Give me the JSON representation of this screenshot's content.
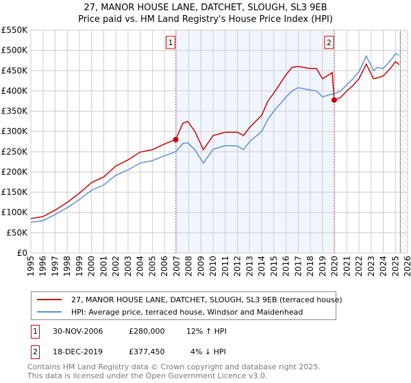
{
  "chart_data": {
    "type": "line",
    "title": "27, MANOR HOUSE LANE, DATCHET, SLOUGH, SL3 9EB",
    "subtitle": "Price paid vs. HM Land Registry's House Price Index (HPI)",
    "xlim": [
      1995,
      2026
    ],
    "ylim": [
      0,
      550000
    ],
    "x_ticks": [
      "1995",
      "1996",
      "1997",
      "1998",
      "1999",
      "2000",
      "2001",
      "2002",
      "2003",
      "2004",
      "2005",
      "2006",
      "2007",
      "2008",
      "2009",
      "2010",
      "2011",
      "2012",
      "2013",
      "2014",
      "2015",
      "2016",
      "2017",
      "2018",
      "2019",
      "2020",
      "2021",
      "2022",
      "2023",
      "2024",
      "2025",
      "2026"
    ],
    "y_ticks": [
      {
        "v": 0,
        "l": "£0"
      },
      {
        "v": 50000,
        "l": "£50K"
      },
      {
        "v": 100000,
        "l": "£100K"
      },
      {
        "v": 150000,
        "l": "£150K"
      },
      {
        "v": 200000,
        "l": "£200K"
      },
      {
        "v": 250000,
        "l": "£250K"
      },
      {
        "v": 300000,
        "l": "£300K"
      },
      {
        "v": 350000,
        "l": "£350K"
      },
      {
        "v": 400000,
        "l": "£400K"
      },
      {
        "v": 450000,
        "l": "£450K"
      },
      {
        "v": 500000,
        "l": "£500K"
      },
      {
        "v": 550000,
        "l": "£550K"
      }
    ],
    "grid": true,
    "series": [
      {
        "name": "27, MANOR HOUSE LANE, DATCHET, SLOUGH, SL3 9EB (terraced house)",
        "color": "#cc0000",
        "x": [
          1995,
          1996,
          1997,
          1998,
          1999,
          2000,
          2001,
          2002,
          2003,
          2004,
          2005,
          2006,
          2006.92,
          2007.5,
          2007.9,
          2008.5,
          2009.2,
          2010,
          2011,
          2012,
          2012.5,
          2013,
          2014,
          2014.5,
          2015,
          2016,
          2016.5,
          2017,
          2018,
          2018.5,
          2019,
          2019.8,
          2019.96,
          2020.5,
          2021,
          2021.5,
          2022,
          2022.6,
          2023.2,
          2023.5,
          2024,
          2024.6,
          2025,
          2025.3
        ],
        "y": [
          85000,
          90000,
          106000,
          125000,
          148000,
          174000,
          188000,
          215000,
          230000,
          249000,
          255000,
          269000,
          280000,
          320000,
          325000,
          300000,
          255000,
          290000,
          298000,
          298000,
          290000,
          310000,
          340000,
          375000,
          395000,
          440000,
          458000,
          460000,
          455000,
          455000,
          430000,
          445000,
          377450,
          384000,
          400000,
          413000,
          430000,
          466000,
          430000,
          432000,
          437000,
          456000,
          472000,
          465000
        ]
      },
      {
        "name": "HPI: Average price, terraced house, Windsor and Maidenhead",
        "color": "#5b8fd0",
        "x": [
          1995,
          1996,
          1997,
          1998,
          1999,
          2000,
          2001,
          2002,
          2003,
          2004,
          2005,
          2006,
          2006.92,
          2007.5,
          2007.9,
          2008.5,
          2009.2,
          2010,
          2011,
          2012,
          2012.5,
          2013,
          2014,
          2014.5,
          2015,
          2016,
          2016.5,
          2017,
          2018,
          2018.5,
          2019,
          2019.5,
          2019.96,
          2020.5,
          2021,
          2021.5,
          2022,
          2022.6,
          2023.2,
          2023.5,
          2024,
          2024.6,
          2025,
          2025.3
        ],
        "y": [
          76000,
          80000,
          95000,
          112000,
          132000,
          155000,
          168000,
          192000,
          205000,
          222000,
          228000,
          240000,
          250000,
          270000,
          272000,
          255000,
          222000,
          256000,
          265000,
          264000,
          255000,
          275000,
          300000,
          330000,
          350000,
          385000,
          400000,
          408000,
          402000,
          400000,
          385000,
          390000,
          393000,
          400000,
          415000,
          430000,
          447000,
          486000,
          450000,
          458000,
          455000,
          475000,
          492000,
          488000
        ]
      }
    ],
    "sales": [
      {
        "id": "1",
        "x": 2006.92,
        "y": 280000
      },
      {
        "id": "2",
        "x": 2019.96,
        "y": 377450
      }
    ],
    "future_hatch_from": 2025.4,
    "legend_position": "bottom"
  },
  "legend": {
    "price_label": "27, MANOR HOUSE LANE, DATCHET, SLOUGH, SL3 9EB (terraced house)",
    "hpi_label": "HPI: Average price, terraced house, Windsor and Maidenhead"
  },
  "transactions": [
    {
      "id": "1",
      "date": "30-NOV-2006",
      "price": "£280,000",
      "hpi": "12% ↑ HPI"
    },
    {
      "id": "2",
      "date": "18-DEC-2019",
      "price": "£377,450",
      "hpi": "4% ↓ HPI"
    }
  ],
  "footer": {
    "line1": "Contains HM Land Registry data © Crown copyright and database right 2025.",
    "line2": "This data is licensed under the Open Government Licence v3.0."
  }
}
